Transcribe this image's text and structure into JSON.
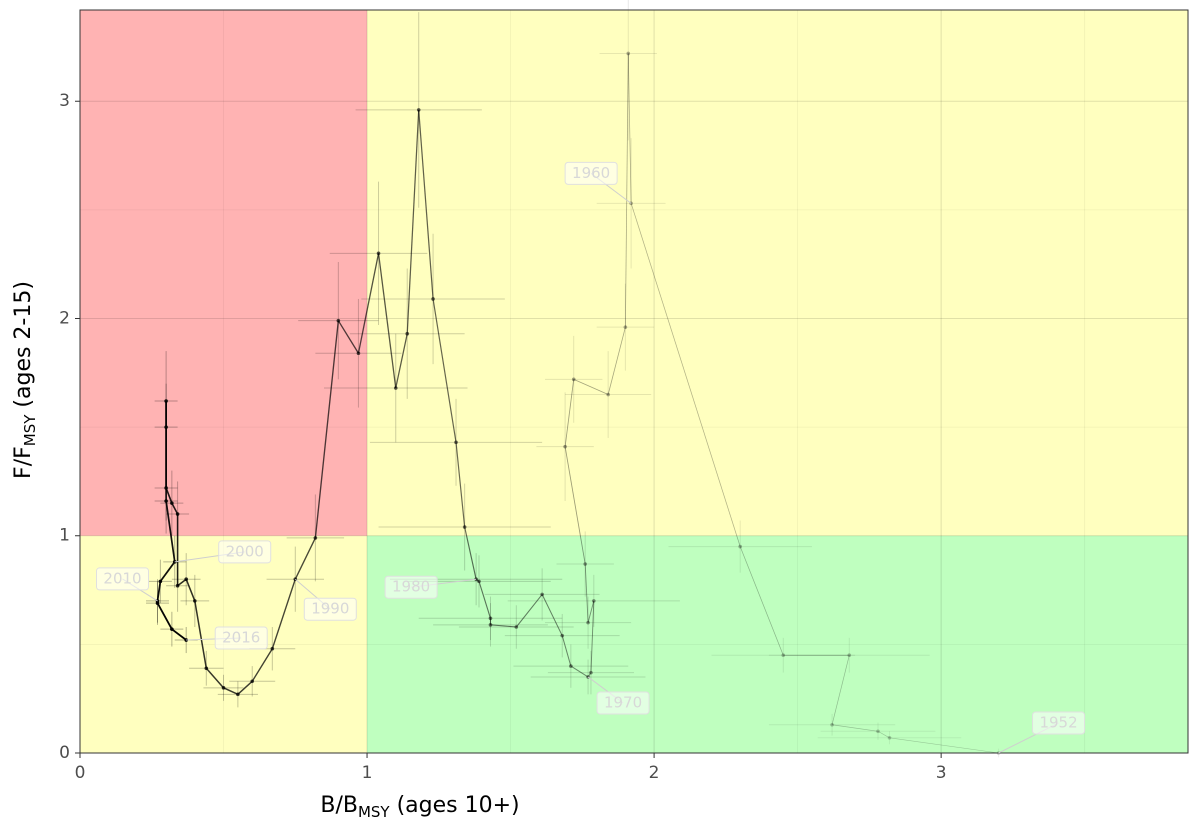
{
  "chart_data": {
    "type": "scatter",
    "x_label": {
      "main": "B/B",
      "sub": "MSY",
      "rest": " (ages 10+)"
    },
    "y_label": {
      "main": "F/F",
      "sub": "MSY",
      "rest": " (ages 2-15)"
    },
    "xlim": [
      0,
      3.86
    ],
    "ylim": [
      0,
      3.42
    ],
    "xticks": [
      0,
      1,
      2,
      3
    ],
    "yticks": [
      0,
      1,
      2,
      3
    ],
    "grid": true,
    "reference": {
      "b_ratio": 1,
      "f_ratio": 1
    },
    "zone_colors": {
      "overfished_overfishing": "#ffb3b3",
      "caution": "#ffffbf",
      "healthy": "#bfffbf"
    },
    "color": "#000000",
    "x": [
      3.2,
      2.82,
      2.78,
      2.62,
      2.68,
      2.45,
      2.3,
      1.92,
      1.91,
      1.9,
      1.84,
      1.72,
      1.69,
      1.76,
      1.77,
      1.79,
      1.78,
      1.77,
      1.71,
      1.68,
      1.61,
      1.52,
      1.43,
      1.43,
      1.39,
      1.38,
      1.34,
      1.31,
      1.23,
      1.18,
      1.14,
      1.1,
      1.04,
      0.97,
      0.9,
      0.82,
      0.75,
      0.67,
      0.6,
      0.55,
      0.5,
      0.44,
      0.4,
      0.37,
      0.34,
      0.34,
      0.32,
      0.3,
      0.3,
      0.3,
      0.3,
      0.33,
      0.28,
      0.27,
      0.27,
      0.32,
      0.37
    ],
    "y": [
      0.0,
      0.07,
      0.1,
      0.13,
      0.45,
      0.45,
      0.95,
      2.53,
      3.22,
      1.96,
      1.65,
      1.72,
      1.41,
      0.87,
      0.6,
      0.7,
      0.37,
      0.35,
      0.4,
      0.54,
      0.73,
      0.58,
      0.59,
      0.62,
      0.79,
      0.8,
      1.04,
      1.43,
      2.09,
      2.96,
      1.93,
      1.68,
      2.3,
      1.84,
      1.99,
      0.99,
      0.8,
      0.48,
      0.33,
      0.27,
      0.3,
      0.39,
      0.7,
      0.8,
      0.77,
      1.1,
      1.15,
      1.22,
      1.5,
      1.62,
      1.16,
      0.88,
      0.79,
      0.7,
      0.69,
      0.57,
      0.52
    ],
    "xerr": [
      0.25,
      0.25,
      0.2,
      0.22,
      0.28,
      0.25,
      0.25,
      0.12,
      0.1,
      0.1,
      0.15,
      0.1,
      0.1,
      0.1,
      0.15,
      0.3,
      0.15,
      0.2,
      0.2,
      0.2,
      0.2,
      0.2,
      0.2,
      0.25,
      0.25,
      0.3,
      0.3,
      0.3,
      0.25,
      0.22,
      0.2,
      0.25,
      0.17,
      0.15,
      0.14,
      0.1,
      0.1,
      0.08,
      0.08,
      0.07,
      0.07,
      0.06,
      0.05,
      0.05,
      0.04,
      0.04,
      0.04,
      0.04,
      0.04,
      0.04,
      0.04,
      0.04,
      0.04,
      0.04,
      0.04,
      0.04,
      0.04
    ],
    "yerr": [
      0.02,
      0.03,
      0.04,
      0.05,
      0.08,
      0.08,
      0.12,
      0.3,
      0.4,
      0.2,
      0.2,
      0.2,
      0.25,
      0.15,
      0.12,
      0.12,
      0.1,
      0.08,
      0.1,
      0.1,
      0.12,
      0.1,
      0.1,
      0.1,
      0.12,
      0.12,
      0.2,
      0.2,
      0.3,
      0.45,
      0.3,
      0.25,
      0.33,
      0.25,
      0.27,
      0.2,
      0.15,
      0.1,
      0.07,
      0.06,
      0.06,
      0.08,
      0.12,
      0.12,
      0.12,
      0.15,
      0.15,
      0.15,
      0.2,
      0.23,
      0.15,
      0.12,
      0.1,
      0.1,
      0.1,
      0.08,
      0.06
    ],
    "annotations": [
      {
        "text": "1952",
        "index": 0
      },
      {
        "text": "1960",
        "index": 7
      },
      {
        "text": "1970",
        "index": 17
      },
      {
        "text": "1980",
        "index": 25
      },
      {
        "text": "1990",
        "index": 36
      },
      {
        "text": "2000",
        "index": 51
      },
      {
        "text": "2010",
        "index": 53
      },
      {
        "text": "2016",
        "index": 56
      }
    ]
  }
}
